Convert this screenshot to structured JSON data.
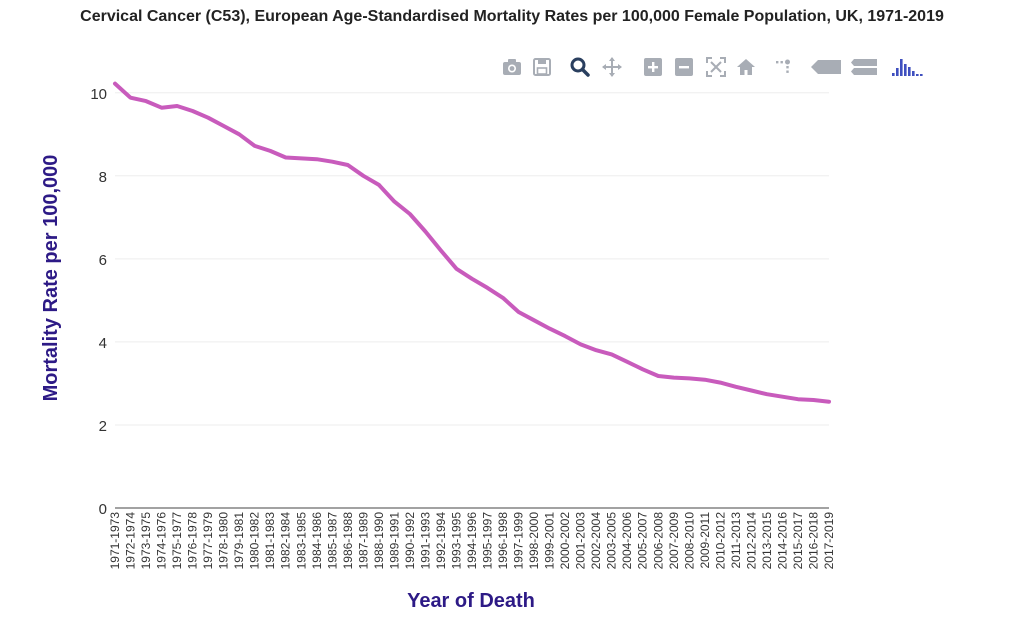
{
  "chart_data": {
    "type": "line",
    "title": "Cervical Cancer (C53), European Age-Standardised Mortality Rates per 100,000 Female Population, UK, 1971-2019",
    "xlabel": "Year of Death",
    "ylabel": "Mortality Rate per 100,000",
    "ylim": [
      0,
      10.5
    ],
    "yticks": [
      0,
      2,
      4,
      6,
      8,
      10
    ],
    "grid": true,
    "categories": [
      "1971-1973",
      "1972-1974",
      "1973-1975",
      "1974-1976",
      "1975-1977",
      "1976-1978",
      "1977-1979",
      "1978-1980",
      "1979-1981",
      "1980-1982",
      "1981-1983",
      "1982-1984",
      "1983-1985",
      "1984-1986",
      "1985-1987",
      "1986-1988",
      "1987-1989",
      "1988-1990",
      "1989-1991",
      "1990-1992",
      "1991-1993",
      "1992-1994",
      "1993-1995",
      "1994-1996",
      "1995-1997",
      "1996-1998",
      "1997-1999",
      "1998-2000",
      "1999-2001",
      "2000-2002",
      "2001-2003",
      "2002-2004",
      "2003-2005",
      "2004-2006",
      "2005-2007",
      "2006-2008",
      "2007-2009",
      "2008-2010",
      "2009-2011",
      "2010-2012",
      "2011-2013",
      "2012-2014",
      "2013-2015",
      "2014-2016",
      "2015-2017",
      "2016-2018",
      "2017-2019"
    ],
    "series": [
      {
        "name": "Mortality Rate",
        "color": "#c85bbc",
        "values": [
          10.22,
          9.88,
          9.8,
          9.64,
          9.68,
          9.56,
          9.4,
          9.2,
          9.0,
          8.72,
          8.6,
          8.44,
          8.42,
          8.4,
          8.34,
          8.26,
          8.0,
          7.78,
          7.38,
          7.08,
          6.66,
          6.2,
          5.76,
          5.52,
          5.3,
          5.06,
          4.72,
          4.52,
          4.32,
          4.14,
          3.94,
          3.8,
          3.7,
          3.52,
          3.34,
          3.18,
          3.14,
          3.12,
          3.09,
          3.02,
          2.92,
          2.83,
          2.74,
          2.68,
          2.62,
          2.6,
          2.56
        ]
      }
    ]
  },
  "colors": {
    "axis_title": "#2d1a86",
    "tick_label": "#333333",
    "grid": "#eeeeee",
    "modebar_icon": "#a8adb5",
    "modebar_active": "#2a3f5f",
    "logo": "#3f4fbf"
  },
  "modebar": [
    {
      "name": "camera-icon",
      "title": "Download plot as a png"
    },
    {
      "name": "save-icon",
      "title": "Save"
    },
    {
      "name": "zoom-icon",
      "title": "Zoom"
    },
    {
      "name": "pan-icon",
      "title": "Pan"
    },
    {
      "name": "zoom-in-icon",
      "title": "Zoom in"
    },
    {
      "name": "zoom-out-icon",
      "title": "Zoom out"
    },
    {
      "name": "autoscale-icon",
      "title": "Autoscale"
    },
    {
      "name": "home-icon",
      "title": "Reset axes"
    },
    {
      "name": "spike-lines-icon",
      "title": "Toggle spike lines"
    },
    {
      "name": "hover-closest-icon",
      "title": "Show closest data on hover"
    },
    {
      "name": "hover-compare-icon",
      "title": "Compare data on hover"
    },
    {
      "name": "plotly-logo-icon",
      "title": "Produced with Plotly"
    }
  ]
}
